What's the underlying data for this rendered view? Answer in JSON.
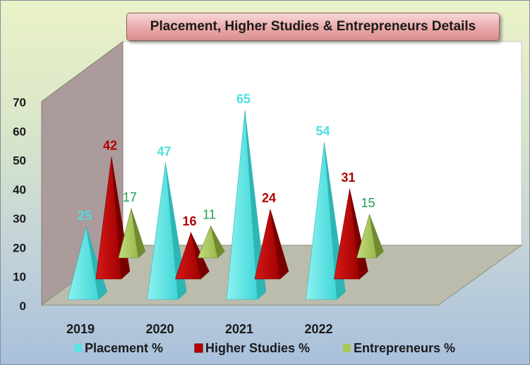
{
  "chart_data": {
    "type": "bar",
    "title": "Placement, Higher Studies & Entrepreneurs Details",
    "categories": [
      "2019",
      "2020",
      "2021",
      "2022"
    ],
    "series": [
      {
        "name": "Placement %",
        "values": [
          25,
          47,
          65,
          54
        ],
        "color": "#5de3e3",
        "label_color": "#4de0e0"
      },
      {
        "name": "Higher Studies %",
        "values": [
          42,
          16,
          24,
          31
        ],
        "color": "#c00000",
        "label_color": "#b00000"
      },
      {
        "name": "Entrepreneurs %",
        "values": [
          17,
          11,
          null,
          15
        ],
        "color": "#a9c75a",
        "label_color": "#1fa050"
      }
    ],
    "ylim": [
      0,
      70
    ],
    "yticks": [
      "0",
      "10",
      "20",
      "30",
      "40",
      "50",
      "60",
      "70"
    ],
    "legend_position": "bottom",
    "shape": "pyramid-3d"
  }
}
